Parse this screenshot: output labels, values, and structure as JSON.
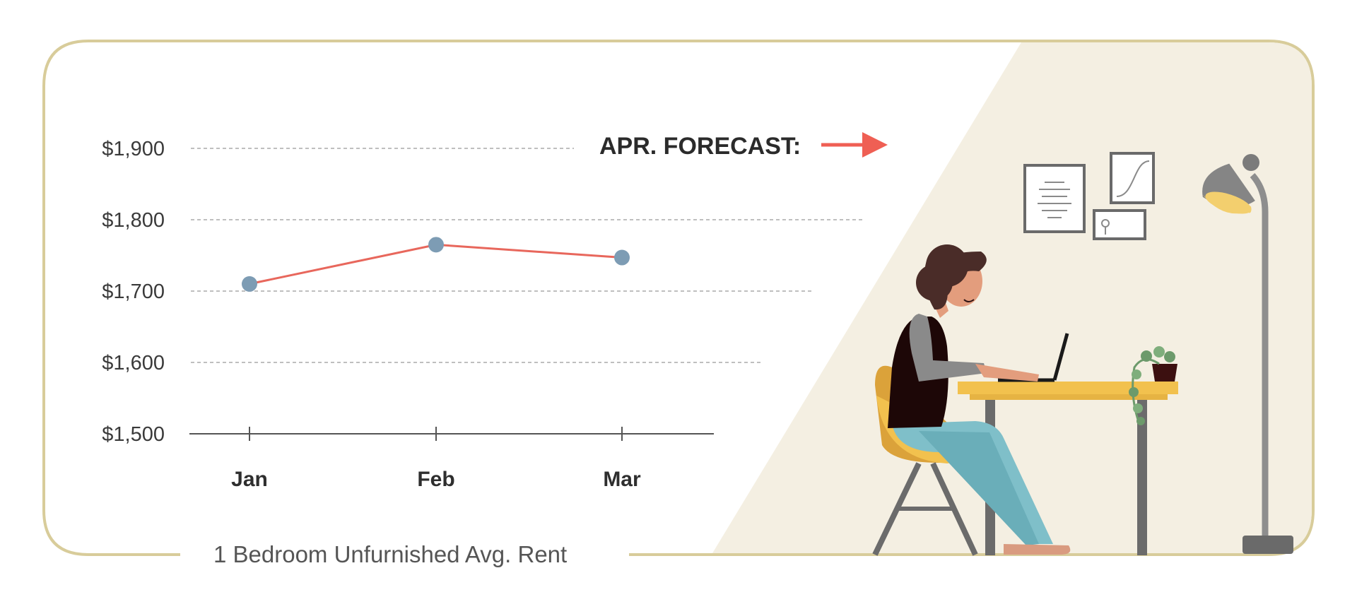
{
  "forecast_label": "APR. FORECAST:",
  "caption": "1 Bedroom Unfurnished Avg. Rent",
  "colors": {
    "frame": "#d8cc9a",
    "panel": "#f4efe2",
    "line": "#e8675c",
    "point": "#7d9cb4",
    "arrow": "#ef5f54",
    "axis": "#555555",
    "grid": "#aaaaaa"
  },
  "chart_data": {
    "type": "line",
    "categories": [
      "Jan",
      "Feb",
      "Mar"
    ],
    "values": [
      1710,
      1765,
      1747
    ],
    "y_ticks": [
      "$1,500",
      "$1,600",
      "$1,700",
      "$1,800",
      "$1,900"
    ],
    "ylim": [
      1500,
      1900
    ],
    "grid": true,
    "legend": "none"
  }
}
